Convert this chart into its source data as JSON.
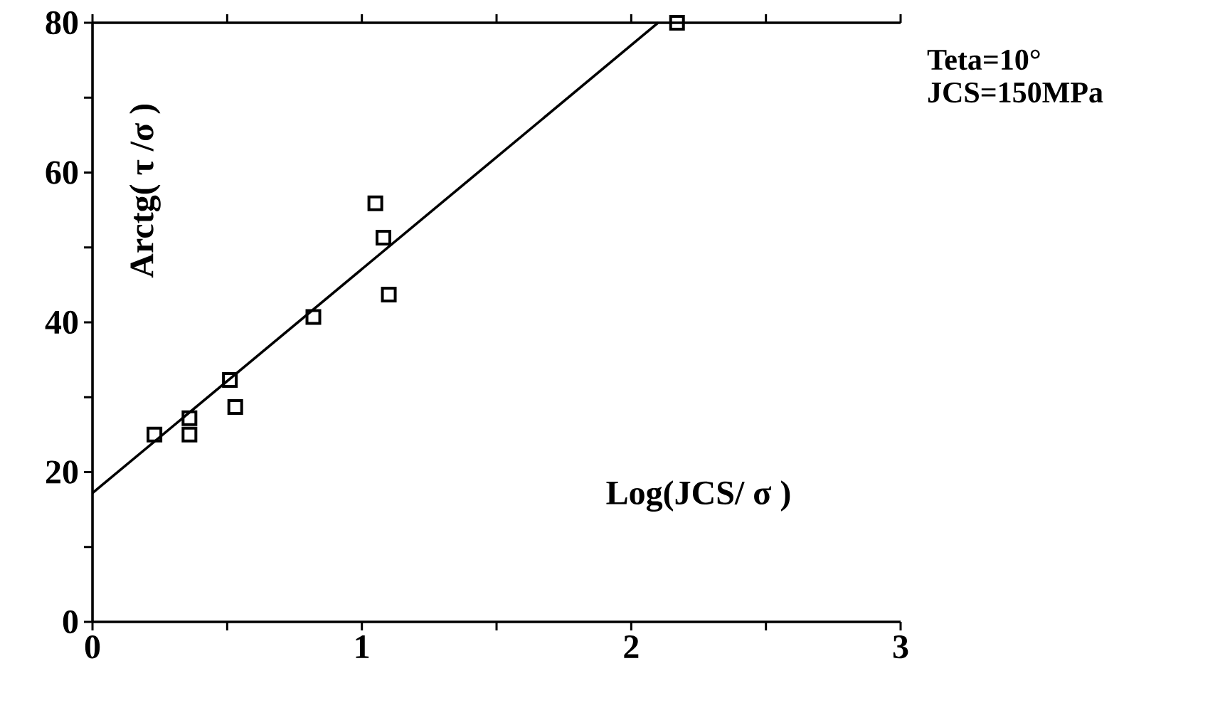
{
  "chart_data": {
    "type": "scatter",
    "xlabel": "Log(JCS/ σ )",
    "ylabel": "Arctg( τ /σ )",
    "annotations": [
      "Teta=10°",
      "JCS=150MPa"
    ],
    "xlim": [
      0,
      3
    ],
    "ylim": [
      0,
      80
    ],
    "xticks": [
      0,
      {
        "value": 0.5,
        "label": null
      },
      1,
      {
        "value": 1.5,
        "label": null
      },
      2,
      {
        "value": 2.5,
        "label": null
      },
      3
    ],
    "yticks": [
      0,
      {
        "value": 10,
        "label": null
      },
      20,
      {
        "value": 30,
        "label": null
      },
      40,
      {
        "value": 50,
        "label": null
      },
      60,
      {
        "value": 70,
        "label": null
      },
      80
    ],
    "series": [
      {
        "marker": "square",
        "color": "#000000",
        "x": [
          0.23,
          0.36,
          0.36,
          0.51,
          0.53,
          0.82,
          1.05,
          1.08,
          1.1,
          2.17
        ],
        "values": [
          25.0,
          27.2,
          25.0,
          32.3,
          28.7,
          40.7,
          55.9,
          51.3,
          43.7,
          80.0
        ]
      },
      {
        "type": "line",
        "marker": "none",
        "color": "#000000",
        "x": [
          0,
          2.1
        ],
        "values": [
          17.2,
          80
        ]
      }
    ]
  }
}
